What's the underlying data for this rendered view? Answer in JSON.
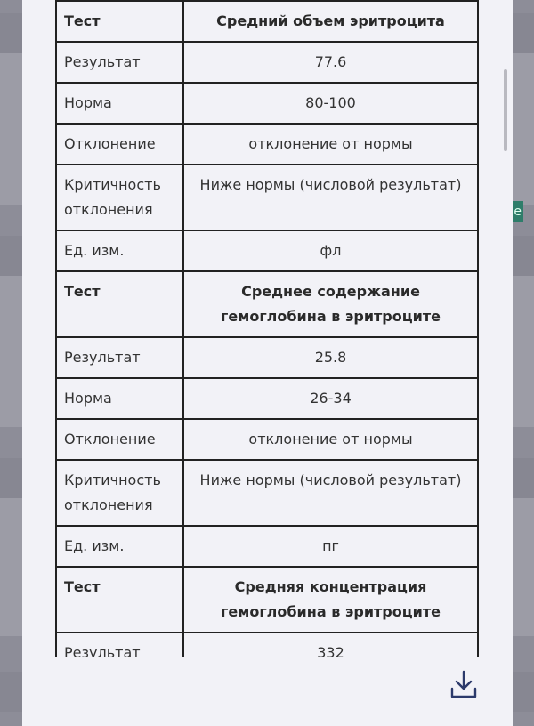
{
  "background_badge": "e",
  "tests": [
    {
      "label_test": "Тест",
      "name": "Средний объем эритроцита",
      "rows": [
        [
          "Результат",
          "77.6"
        ],
        [
          "Норма",
          "80-100"
        ],
        [
          "Отклонение",
          "отклонение от нормы"
        ],
        [
          "Критичность отклонения",
          "Ниже нормы (числовой результат)"
        ],
        [
          "Ед. изм.",
          "фл"
        ]
      ]
    },
    {
      "label_test": "Тест",
      "name": "Среднее содержание гемоглобина в эритроците",
      "rows": [
        [
          "Результат",
          "25.8"
        ],
        [
          "Норма",
          "26-34"
        ],
        [
          "Отклонение",
          "отклонение от нормы"
        ],
        [
          "Критичность отклонения",
          "Ниже нормы (числовой результат)"
        ],
        [
          "Ед. изм.",
          "пг"
        ]
      ]
    },
    {
      "label_test": "Тест",
      "name": "Средняя концентрация гемоглобина в эритроците",
      "rows": [
        [
          "Результат",
          "332"
        ],
        [
          "",
          ""
        ]
      ]
    }
  ],
  "download_icon": "download-icon",
  "colors": {
    "modal_bg": "#f2f2f7",
    "border": "#222222",
    "icon": "#2c3a6b",
    "badge": "#2e7d6a"
  }
}
